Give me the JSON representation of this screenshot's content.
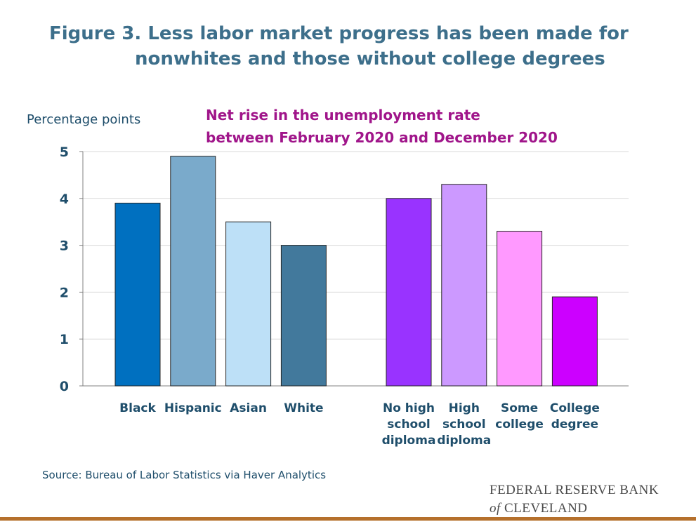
{
  "page": {
    "title_line1": "Figure 3. Less labor market progress has been made for",
    "title_line2": "nonwhites and those without college degrees",
    "source": "Source: Bureau of Labor Statistics via Haver Analytics",
    "logo_line1": "FEDERAL RESERVE BANK",
    "logo_of": "of",
    "logo_line2": "CLEVELAND"
  },
  "chart_data": {
    "type": "bar",
    "title": "Net rise in the unemployment rate between February 2020 and December 2020",
    "title_lines": [
      "Net rise in the unemployment rate",
      "between February 2020 and December 2020"
    ],
    "ylabel": "Percentage points",
    "xlabel": "",
    "ylim": [
      0,
      5
    ],
    "yticks": [
      0,
      1,
      2,
      3,
      4,
      5
    ],
    "grid": true,
    "groups": [
      {
        "bars": [
          {
            "label": [
              "Black"
            ],
            "value": 3.9,
            "color": "#0070c0"
          },
          {
            "label": [
              "Hispanic"
            ],
            "value": 4.9,
            "color": "#7aaacb"
          },
          {
            "label": [
              "Asian"
            ],
            "value": 3.5,
            "color": "#bde0f7"
          },
          {
            "label": [
              "White"
            ],
            "value": 3.0,
            "color": "#42799c"
          }
        ]
      },
      {
        "bars": [
          {
            "label": [
              "No high",
              "school",
              "diploma"
            ],
            "value": 4.0,
            "color": "#9933ff"
          },
          {
            "label": [
              "High",
              "school",
              "diploma"
            ],
            "value": 4.3,
            "color": "#cc99ff"
          },
          {
            "label": [
              "Some",
              "college"
            ],
            "value": 3.3,
            "color": "#ff99ff"
          },
          {
            "label": [
              "College",
              "degree"
            ],
            "value": 1.9,
            "color": "#cc00ff"
          }
        ]
      }
    ]
  }
}
